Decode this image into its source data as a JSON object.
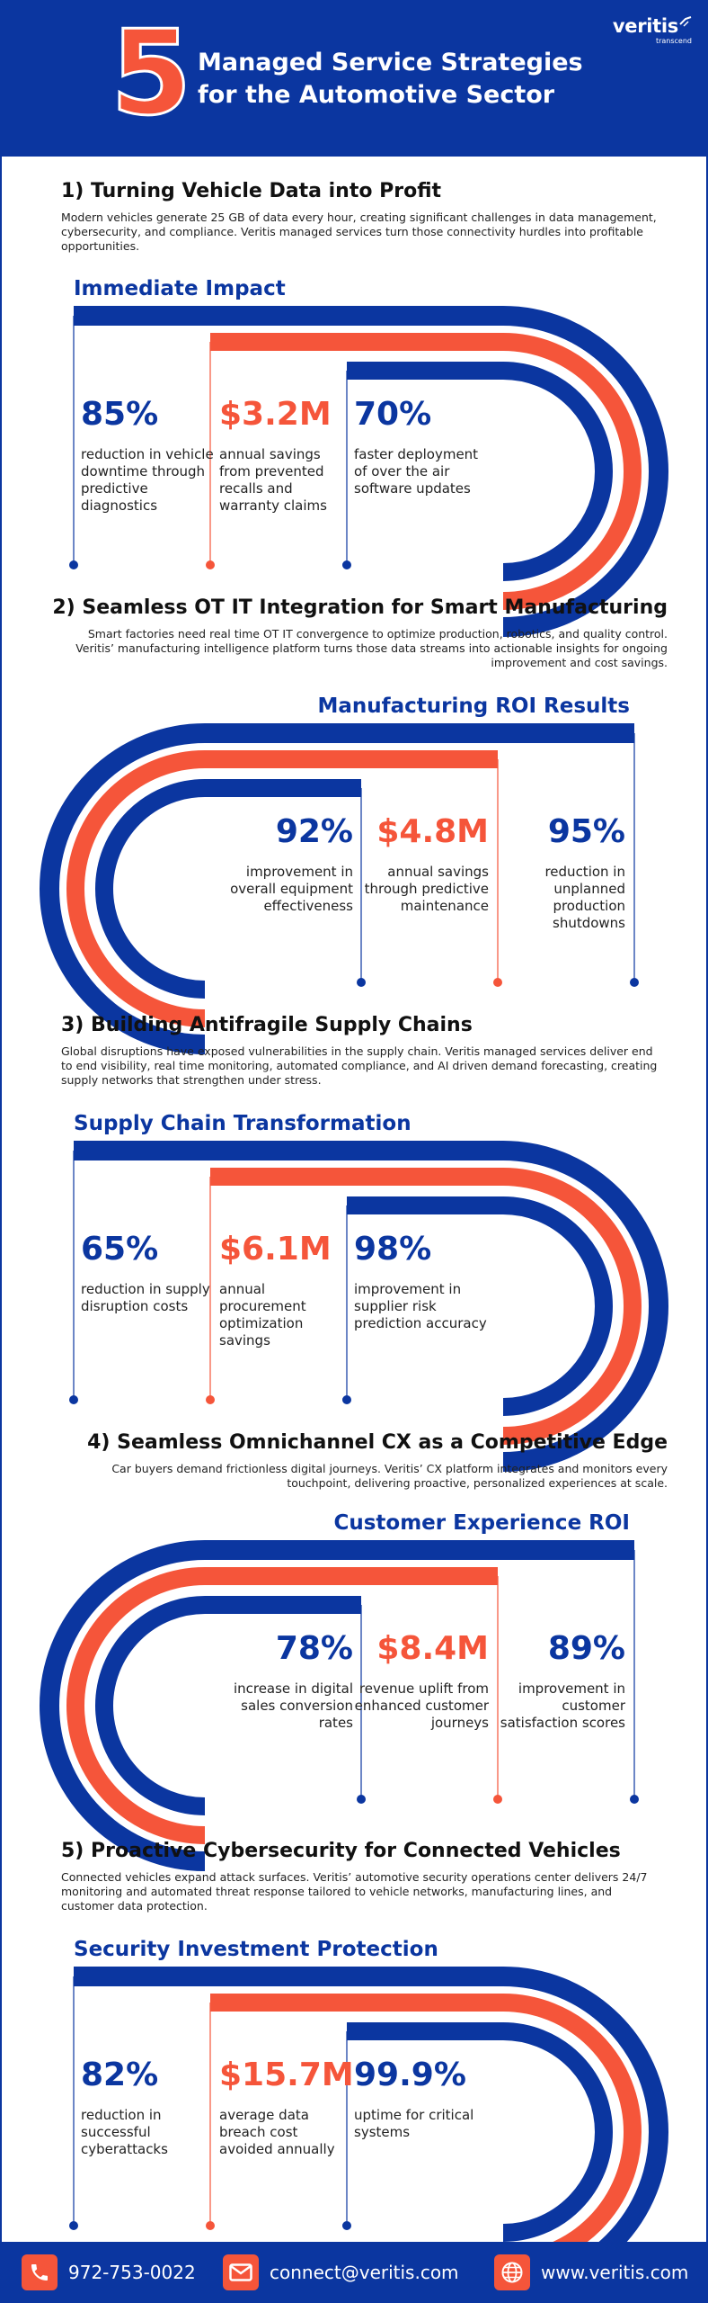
{
  "header": {
    "number": "5",
    "title_line1": "Managed Service Strategies",
    "title_line2": "for the Automotive Sector",
    "logo_name": "veritis",
    "logo_tagline": "transcend"
  },
  "sections": [
    {
      "title": "1) Turning Vehicle Data into Profit",
      "description": "Modern vehicles generate 25 GB of data every hour, creating significant challenges in data management, cybersecurity, and compliance. Veritis managed services turn those connectivity hurdles into profitable opportunities.",
      "subtitle": "Immediate Impact",
      "stats": [
        {
          "value": "85%",
          "label": "reduction in vehicle downtime through predictive diagnostics"
        },
        {
          "value": "$3.2M",
          "label": "annual savings from prevented recalls and warranty claims"
        },
        {
          "value": "70%",
          "label": "faster deployment of over the air software updates"
        }
      ]
    },
    {
      "title": "2) Seamless OT IT Integration for Smart Manufacturing",
      "description": "Smart factories need real time OT IT convergence to optimize production, robotics, and quality control. Veritis’ manufacturing intelligence platform turns those data streams into actionable insights for ongoing improvement and cost savings.",
      "subtitle": "Manufacturing ROI Results",
      "stats": [
        {
          "value": "92%",
          "label": "improvement in overall equipment effectiveness"
        },
        {
          "value": "$4.8M",
          "label": "annual savings through predictive maintenance"
        },
        {
          "value": "95%",
          "label": "reduction in unplanned production shutdowns"
        }
      ]
    },
    {
      "title": "3) Building Antifragile Supply Chains",
      "description": "Global disruptions have exposed vulnerabilities in the supply chain. Veritis managed services deliver end to end visibility, real time monitoring, automated compliance, and AI driven demand forecasting, creating supply networks that strengthen under stress.",
      "subtitle": "Supply Chain Transformation",
      "stats": [
        {
          "value": "65%",
          "label": "reduction in supply disruption costs"
        },
        {
          "value": "$6.1M",
          "label": "annual procurement optimization savings"
        },
        {
          "value": "98%",
          "label": "improvement in supplier risk prediction accuracy"
        }
      ]
    },
    {
      "title": "4) Seamless Omnichannel CX as a Competitive Edge",
      "description": "Car buyers demand frictionless digital journeys. Veritis’ CX platform integrates and monitors every touchpoint, delivering proactive, personalized experiences at scale.",
      "subtitle": "Customer Experience ROI",
      "stats": [
        {
          "value": "78%",
          "label": "increase in digital sales conversion rates"
        },
        {
          "value": "$8.4M",
          "label": "revenue uplift from enhanced customer journeys"
        },
        {
          "value": "89%",
          "label": "improvement in customer satisfaction scores"
        }
      ]
    },
    {
      "title": "5) Proactive Cybersecurity for Connected Vehicles",
      "description": "Connected vehicles expand attack surfaces. Veritis’ automotive security operations center delivers 24/7 monitoring and automated threat response tailored to vehicle networks, manufacturing lines, and customer data protection.",
      "subtitle": "Security Investment Protection",
      "stats": [
        {
          "value": "82%",
          "label": "reduction in successful cyberattacks"
        },
        {
          "value": "$15.7M",
          "label": "average data breach cost avoided annually"
        },
        {
          "value": "99.9%",
          "label": "uptime for critical systems"
        }
      ]
    }
  ],
  "footer": {
    "phone": "972-753-0022",
    "email": "connect@veritis.com",
    "website": "www.veritis.com",
    "phone_icon": "phone-icon",
    "email_icon": "envelope-icon",
    "website_icon": "globe-icon"
  },
  "colors": {
    "primary": "#0b36a0",
    "accent": "#f5553a"
  }
}
